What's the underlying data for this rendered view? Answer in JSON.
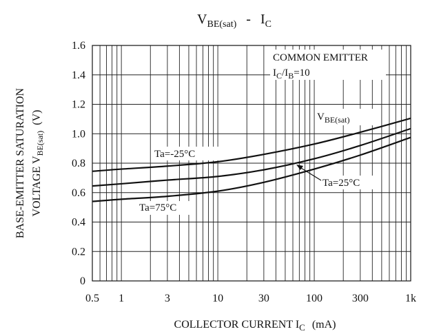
{
  "chart_data": {
    "type": "line",
    "title": "V_BE(sat) - I_C",
    "title_main": "V",
    "title_sub": "BE(sat)",
    "title_dash": "-",
    "title_ic_main": "I",
    "title_ic_sub": "C",
    "xlabel_main": "COLLECTOR CURRENT I",
    "xlabel_sub": "C",
    "xlabel_unit": "(mA)",
    "ylabel_line1": "BASE-EMITTER SATURATION",
    "ylabel_line2_main": "VOLTAGE V",
    "ylabel_line2_sub": "BE(sat)",
    "ylabel_line2_unit": "(V)",
    "x_scale": "log",
    "xlim": [
      0.5,
      1000
    ],
    "ylim": [
      0,
      1.6
    ],
    "grid": true,
    "x_ticks": [
      {
        "value": 0.5,
        "label": "0.5"
      },
      {
        "value": 1,
        "label": "1"
      },
      {
        "value": 3,
        "label": "3"
      },
      {
        "value": 10,
        "label": "10"
      },
      {
        "value": 30,
        "label": "30"
      },
      {
        "value": 100,
        "label": "100"
      },
      {
        "value": 300,
        "label": "300"
      },
      {
        "value": 1000,
        "label": "1k"
      }
    ],
    "y_ticks": [
      {
        "value": 0,
        "label": "0"
      },
      {
        "value": 0.2,
        "label": "0.2"
      },
      {
        "value": 0.4,
        "label": "0.4"
      },
      {
        "value": 0.6,
        "label": "0.6"
      },
      {
        "value": 0.8,
        "label": "0.8"
      },
      {
        "value": 1.0,
        "label": "1.0"
      },
      {
        "value": 1.2,
        "label": "1.2"
      },
      {
        "value": 1.4,
        "label": "1.4"
      },
      {
        "value": 1.6,
        "label": "1.6"
      }
    ],
    "annotations": {
      "condition_line1": "COMMON EMITTER",
      "condition_line2_a": "I",
      "condition_line2_a_sub": "C",
      "condition_line2_b": "/I",
      "condition_line2_b_sub": "B",
      "condition_line2_c": "=10",
      "curve_label_main": "V",
      "curve_label_sub": "BE(sat)"
    },
    "series": [
      {
        "name": "Ta=-25°C",
        "x": [
          0.5,
          1,
          3,
          10,
          30,
          100,
          300,
          1000
        ],
        "y": [
          0.745,
          0.76,
          0.78,
          0.81,
          0.86,
          0.93,
          1.01,
          1.105
        ]
      },
      {
        "name": "Ta=25°C",
        "x": [
          0.5,
          1,
          3,
          10,
          30,
          100,
          300,
          1000
        ],
        "y": [
          0.645,
          0.66,
          0.685,
          0.71,
          0.755,
          0.83,
          0.92,
          1.035
        ]
      },
      {
        "name": "Ta=75°C",
        "x": [
          0.5,
          1,
          3,
          10,
          30,
          100,
          300,
          1000
        ],
        "y": [
          0.54,
          0.555,
          0.575,
          0.61,
          0.67,
          0.76,
          0.855,
          0.975
        ]
      }
    ]
  }
}
